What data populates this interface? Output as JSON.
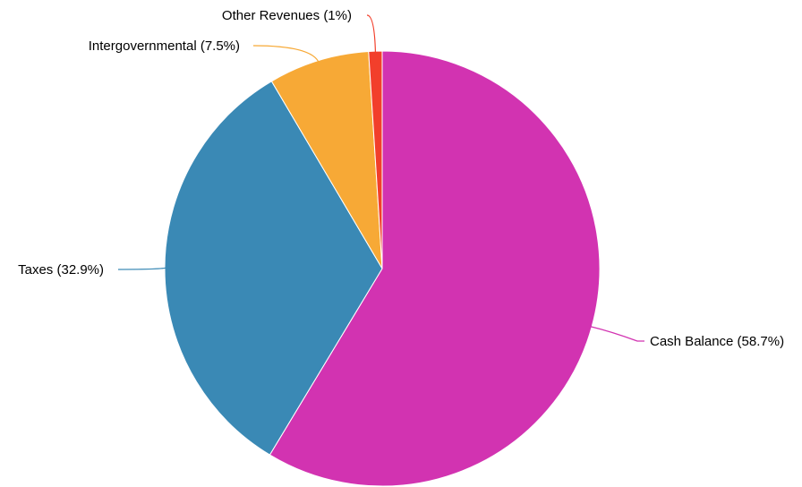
{
  "chart_data": {
    "type": "pie",
    "slices": [
      {
        "label": "Cash Balance (58.7%)",
        "name": "Cash Balance",
        "percent": 58.7,
        "color": "#d233b1"
      },
      {
        "label": "Taxes (32.9%)",
        "name": "Taxes",
        "percent": 32.9,
        "color": "#3a89b5"
      },
      {
        "label": "Intergovernmental (7.5%)",
        "name": "Intergovernmental",
        "percent": 7.5,
        "color": "#f7a936"
      },
      {
        "label": "Other Revenues (1%)",
        "name": "Other Revenues",
        "percent": 1,
        "color": "#f23f2b"
      }
    ],
    "start_angle": "12 o'clock",
    "direction": "clockwise",
    "legend": "none",
    "labels": "outside-with-callout-lines"
  }
}
